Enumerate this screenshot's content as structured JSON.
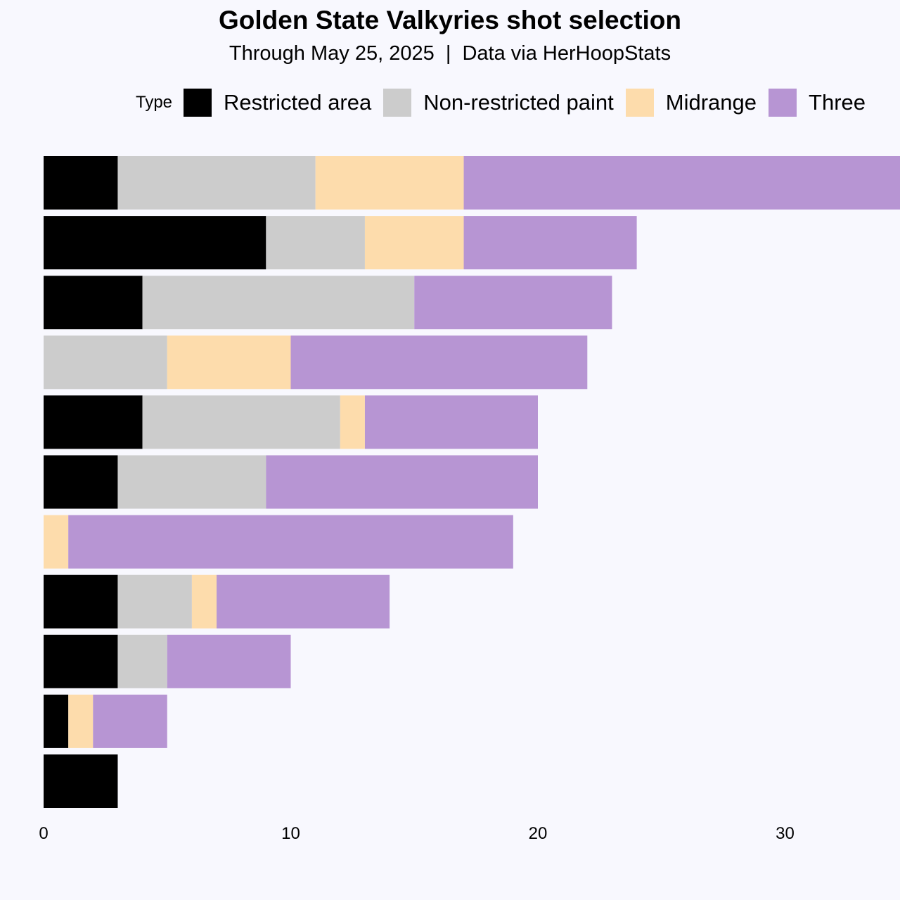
{
  "title": "Golden State Valkyries shot selection",
  "subtitle": "Through May 25, 2025  |  Data via HerHoopStats",
  "legend": {
    "title": "Type",
    "items": [
      {
        "label": "Restricted area",
        "color": "#000000"
      },
      {
        "label": "Non-restricted paint",
        "color": "#cccccc"
      },
      {
        "label": "Midrange",
        "color": "#fddcac"
      },
      {
        "label": "Three",
        "color": "#b795d3"
      }
    ]
  },
  "chart_data": {
    "type": "bar",
    "orientation": "horizontal",
    "stacked": true,
    "categories": [
      "",
      "",
      "",
      "",
      "",
      "",
      "",
      "",
      "",
      "",
      ""
    ],
    "series": [
      {
        "name": "Restricted area",
        "color": "#000000",
        "values": [
          3,
          9,
          4,
          0,
          4,
          3,
          0,
          3,
          3,
          1,
          3
        ]
      },
      {
        "name": "Non-restricted paint",
        "color": "#cccccc",
        "values": [
          8,
          4,
          11,
          5,
          8,
          6,
          0,
          3,
          2,
          0,
          0
        ]
      },
      {
        "name": "Midrange",
        "color": "#fddcac",
        "values": [
          6,
          4,
          0,
          5,
          1,
          0,
          1,
          1,
          0,
          1,
          0
        ]
      },
      {
        "name": "Three",
        "color": "#b795d3",
        "values": [
          19,
          7,
          8,
          12,
          7,
          11,
          18,
          7,
          5,
          3,
          0
        ]
      }
    ],
    "x_ticks": [
      0,
      10,
      20,
      30
    ],
    "xlim": [
      0,
      36
    ],
    "grid": false,
    "legend_position": "top"
  }
}
